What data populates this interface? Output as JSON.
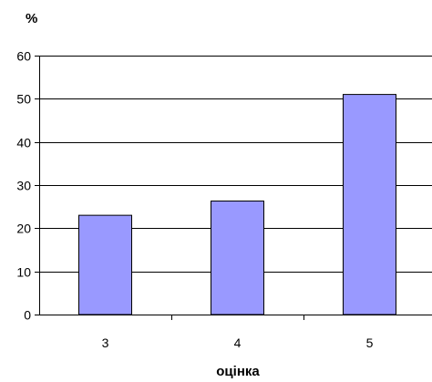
{
  "chart_data": {
    "type": "bar",
    "categories": [
      "3",
      "4",
      "5"
    ],
    "values": [
      23,
      26.3,
      51
    ],
    "title": "",
    "xlabel": "оцінка",
    "ylabel": "%",
    "ylim": [
      0,
      60
    ],
    "yticks": [
      0,
      10,
      20,
      30,
      40,
      50,
      60
    ],
    "grid": true,
    "legend": "none",
    "colors": {
      "bar_fill": "#9999ff",
      "bar_stroke": "#000000",
      "grid": "#000000",
      "background": "#ffffff"
    }
  }
}
